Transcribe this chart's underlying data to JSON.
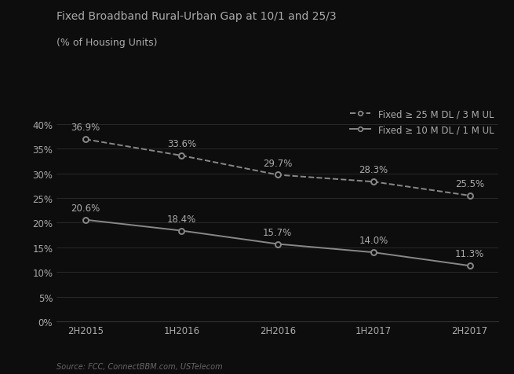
{
  "title_line1": "Fixed Broadband Rural-Urban Gap at 10/1 and 25/3",
  "title_line2": "(% of Housing Units)",
  "source": "Source: FCC, ConnectBBM.com, USTelecom",
  "categories": [
    "2H2015",
    "1H2016",
    "2H2016",
    "1H2017",
    "2H2017"
  ],
  "series_25m": [
    0.369,
    0.336,
    0.297,
    0.283,
    0.255
  ],
  "series_10m": [
    0.206,
    0.184,
    0.157,
    0.14,
    0.113
  ],
  "labels_25m": [
    "36.9%",
    "33.6%",
    "29.7%",
    "28.3%",
    "25.5%"
  ],
  "labels_10m": [
    "20.6%",
    "18.4%",
    "15.7%",
    "14.0%",
    "11.3%"
  ],
  "legend_25m": "Fixed ≥ 25 M DL / 3 M UL",
  "legend_10m": "Fixed ≥ 10 M DL / 1 M UL",
  "line_color": "#888888",
  "marker_color": "#888888",
  "bg_color": "#0d0d0d",
  "text_color": "#aaaaaa",
  "grid_color": "#333333",
  "ylim": [
    0,
    0.44
  ],
  "yticks": [
    0.0,
    0.05,
    0.1,
    0.15,
    0.2,
    0.25,
    0.3,
    0.35,
    0.4
  ],
  "title_fontsize": 10,
  "title2_fontsize": 9,
  "label_fontsize": 8.5,
  "tick_fontsize": 8.5,
  "legend_fontsize": 8.5,
  "source_fontsize": 7
}
